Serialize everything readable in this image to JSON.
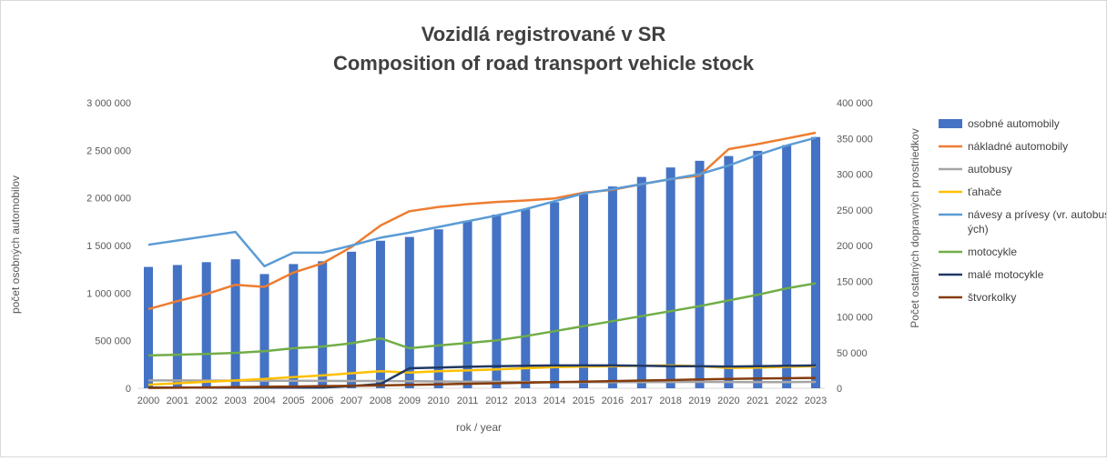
{
  "chart_data": {
    "type": "bar+line",
    "title": "Vozidlá registrované v SR",
    "subtitle": "Composition of road transport vehicle stock",
    "xlabel": "rok / year",
    "ylabel": "počet osobných automobilov",
    "y2label": "Počet ostatných dopravných prostriedkov",
    "ylim": [
      0,
      3000000
    ],
    "y2lim": [
      0,
      400000
    ],
    "yticks": [
      0,
      500000,
      1000000,
      1500000,
      2000000,
      2500000,
      3000000
    ],
    "yticklabels": [
      "0",
      "500 000",
      "1 000 000",
      "1 500 000",
      "2 000 000",
      "2 500 000",
      "3 000 000"
    ],
    "y2ticks": [
      0,
      50000,
      100000,
      150000,
      200000,
      250000,
      300000,
      350000,
      400000
    ],
    "y2ticklabels": [
      "0",
      "50 000",
      "100 000",
      "150 000",
      "200 000",
      "250 000",
      "300 000",
      "350 000",
      "400 000"
    ],
    "legend_position": "right",
    "grid": false,
    "categories": [
      "2000",
      "2001",
      "2002",
      "2003",
      "2004",
      "2005",
      "2006",
      "2007",
      "2008",
      "2009",
      "2010",
      "2011",
      "2012",
      "2013",
      "2014",
      "2015",
      "2016",
      "2017",
      "2018",
      "2019",
      "2020",
      "2021",
      "2022",
      "2023"
    ],
    "series": [
      {
        "name": "osobné automobily",
        "type": "bar",
        "axis": "left",
        "color": "#4472c4",
        "values": [
          1275000,
          1295000,
          1325000,
          1355000,
          1200000,
          1305000,
          1335000,
          1435000,
          1550000,
          1590000,
          1670000,
          1760000,
          1825000,
          1880000,
          1955000,
          2040000,
          2120000,
          2220000,
          2320000,
          2390000,
          2440000,
          2495000,
          2555000,
          2640000
        ]
      },
      {
        "name": "nákladné automobily",
        "type": "line",
        "axis": "right",
        "color": "#ed7d31",
        "values": [
          111000,
          122000,
          132000,
          145000,
          142000,
          162000,
          175000,
          198000,
          228000,
          248000,
          254000,
          258000,
          261000,
          263000,
          266000,
          274000,
          278000,
          286000,
          293000,
          298000,
          335000,
          342000,
          350000,
          358000
        ]
      },
      {
        "name": "autobusy",
        "type": "line",
        "axis": "right",
        "color": "#a5a5a5",
        "values": [
          11000,
          11000,
          10800,
          10700,
          10500,
          10500,
          10300,
          10200,
          10200,
          9800,
          9500,
          9200,
          9000,
          8800,
          8700,
          8600,
          8600,
          8700,
          8800,
          8900,
          8800,
          8700,
          8700,
          8900
        ]
      },
      {
        "name": "ťahače",
        "type": "line",
        "axis": "right",
        "color": "#ffc000",
        "values": [
          5000,
          7000,
          9000,
          11000,
          13000,
          15500,
          18000,
          21000,
          24000,
          22000,
          24000,
          25000,
          26500,
          28000,
          29500,
          30500,
          31000,
          31500,
          32000,
          31000,
          28500,
          29000,
          30000,
          31000
        ]
      },
      {
        "name": "návesy a prívesy (vr. autobusových)",
        "type": "line",
        "axis": "right",
        "color": "#5b9bd5",
        "values": [
          201000,
          207000,
          213000,
          219000,
          171000,
          190000,
          190000,
          200000,
          211000,
          218000,
          226000,
          234000,
          242000,
          251000,
          262000,
          273000,
          279000,
          286000,
          293000,
          300000,
          312000,
          327000,
          340000,
          351000
        ]
      },
      {
        "name": "motocykle",
        "type": "line",
        "axis": "right",
        "color": "#70ad47",
        "values": [
          46000,
          47000,
          48000,
          49500,
          52000,
          56000,
          58500,
          63000,
          70000,
          56000,
          60000,
          63500,
          67000,
          73000,
          80000,
          87000,
          94000,
          101000,
          108000,
          115000,
          123000,
          131000,
          140000,
          147000
        ]
      },
      {
        "name": "malé motocykle",
        "type": "line",
        "axis": "right",
        "color": "#203864",
        "values": [
          1000,
          1000,
          1000,
          1000,
          1000,
          1000,
          1000,
          3000,
          6000,
          28000,
          29000,
          30000,
          31000,
          31500,
          32000,
          32000,
          32000,
          31500,
          31000,
          31000,
          30500,
          31000,
          31500,
          32000
        ]
      },
      {
        "name": "štvorkolky",
        "type": "line",
        "axis": "right",
        "color": "#843c0c",
        "values": [
          500,
          800,
          1200,
          1600,
          2000,
          2400,
          3000,
          3500,
          4000,
          4800,
          5500,
          6300,
          7000,
          7800,
          8500,
          9200,
          10000,
          10800,
          11500,
          12300,
          13000,
          13600,
          14000,
          14500
        ]
      }
    ]
  }
}
